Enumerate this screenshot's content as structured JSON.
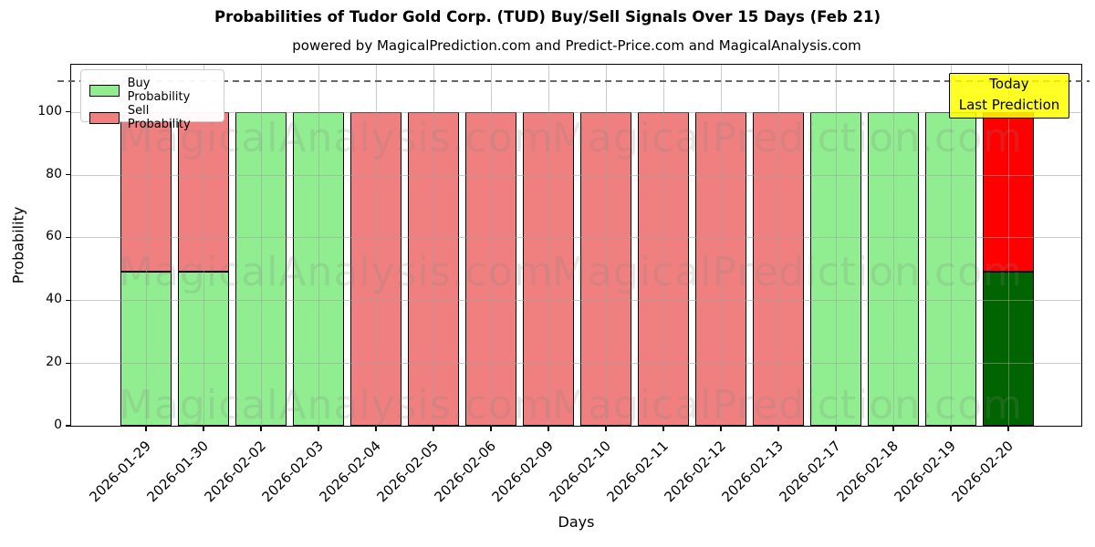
{
  "chart_data": {
    "type": "bar",
    "stacked": true,
    "title": "Probabilities of Tudor Gold Corp. (TUD) Buy/Sell Signals Over 15 Days (Feb 21)",
    "subtitle": "powered by MagicalPrediction.com and Predict-Price.com and MagicalAnalysis.com",
    "xlabel": "Days",
    "ylabel": "Probability",
    "ylim": [
      0,
      115
    ],
    "yticks": [
      0,
      20,
      40,
      60,
      80,
      100
    ],
    "threshold_line_y": 110,
    "grid": true,
    "legend_position": "upper left",
    "categories": [
      "2026-01-29",
      "2026-01-30",
      "2026-02-02",
      "2026-02-03",
      "2026-02-04",
      "2026-02-05",
      "2026-02-06",
      "2026-02-09",
      "2026-02-10",
      "2026-02-11",
      "2026-02-12",
      "2026-02-13",
      "2026-02-17",
      "2026-02-18",
      "2026-02-19",
      "2026-02-20"
    ],
    "series": [
      {
        "name": "Buy Probability",
        "color": "#90EE90",
        "values": [
          49,
          49,
          100,
          100,
          0,
          0,
          0,
          0,
          0,
          0,
          0,
          0,
          100,
          100,
          100,
          49
        ]
      },
      {
        "name": "Sell Probability",
        "color": "#F08080",
        "values": [
          51,
          51,
          0,
          0,
          100,
          100,
          100,
          100,
          100,
          100,
          100,
          100,
          0,
          0,
          0,
          51
        ]
      }
    ],
    "today_index": 15,
    "today_colors": {
      "buy": "#006400",
      "sell": "#FF0000"
    },
    "annotation": {
      "line1": "Today",
      "line2": "Last Prediction",
      "bg_color": "#FFFF00"
    },
    "watermarks": {
      "left": "MagicalAnalysis.com",
      "right": "MagicalPrediction.com"
    }
  }
}
